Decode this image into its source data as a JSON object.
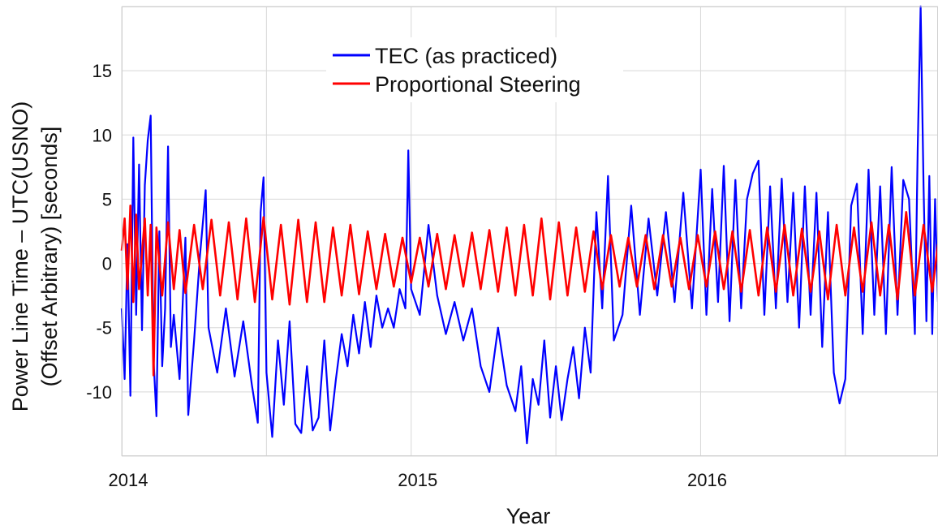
{
  "chart_data": {
    "type": "line",
    "title": "",
    "xlabel": "Year",
    "ylabel": [
      "Power Line Time – UTC(USNO)",
      "(Offset Arbitrary)  [seconds]"
    ],
    "xlim": [
      2014.0,
      2016.82
    ],
    "ylim": [
      -15,
      20
    ],
    "x_ticks": [
      2014,
      2015,
      2016
    ],
    "x_tick_labels": [
      "2014",
      "2015",
      "2016"
    ],
    "y_ticks": [
      -10,
      -5,
      0,
      5,
      10,
      15
    ],
    "y_tick_labels": [
      "-10",
      "-5",
      "0",
      "5",
      "10",
      "15"
    ],
    "grid": true,
    "legend_position": "top-center",
    "series": [
      {
        "name": "TEC (as practiced)",
        "color": "#0000ff",
        "points": [
          [
            2014.0,
            -3.5
          ],
          [
            2014.01,
            -9.0
          ],
          [
            2014.02,
            1.5
          ],
          [
            2014.03,
            -10.3
          ],
          [
            2014.04,
            9.8
          ],
          [
            2014.05,
            -4.0
          ],
          [
            2014.06,
            7.7
          ],
          [
            2014.07,
            -5.2
          ],
          [
            2014.08,
            6.1
          ],
          [
            2014.09,
            9.6
          ],
          [
            2014.1,
            11.5
          ],
          [
            2014.11,
            -7.5
          ],
          [
            2014.12,
            -11.9
          ],
          [
            2014.13,
            2.5
          ],
          [
            2014.14,
            -8.0
          ],
          [
            2014.15,
            -3.5
          ],
          [
            2014.16,
            9.1
          ],
          [
            2014.17,
            -6.5
          ],
          [
            2014.18,
            -4.0
          ],
          [
            2014.2,
            -9.0
          ],
          [
            2014.22,
            2.0
          ],
          [
            2014.23,
            -11.8
          ],
          [
            2014.25,
            -6.0
          ],
          [
            2014.27,
            0.5
          ],
          [
            2014.29,
            5.7
          ],
          [
            2014.3,
            -5.0
          ],
          [
            2014.33,
            -8.5
          ],
          [
            2014.36,
            -3.5
          ],
          [
            2014.39,
            -8.8
          ],
          [
            2014.42,
            -4.5
          ],
          [
            2014.45,
            -9.5
          ],
          [
            2014.47,
            -12.4
          ],
          [
            2014.48,
            4.0
          ],
          [
            2014.49,
            6.7
          ],
          [
            2014.5,
            -8.5
          ],
          [
            2014.52,
            -13.5
          ],
          [
            2014.54,
            -6.0
          ],
          [
            2014.56,
            -11.0
          ],
          [
            2014.58,
            -4.5
          ],
          [
            2014.6,
            -12.5
          ],
          [
            2014.62,
            -13.2
          ],
          [
            2014.64,
            -8.0
          ],
          [
            2014.66,
            -13.0
          ],
          [
            2014.68,
            -12.0
          ],
          [
            2014.7,
            -6.0
          ],
          [
            2014.72,
            -13.0
          ],
          [
            2014.74,
            -9.0
          ],
          [
            2014.76,
            -5.5
          ],
          [
            2014.78,
            -8.0
          ],
          [
            2014.8,
            -4.0
          ],
          [
            2014.82,
            -7.0
          ],
          [
            2014.84,
            -3.0
          ],
          [
            2014.86,
            -6.5
          ],
          [
            2014.88,
            -2.5
          ],
          [
            2014.9,
            -5.0
          ],
          [
            2014.92,
            -3.5
          ],
          [
            2014.94,
            -5.0
          ],
          [
            2014.96,
            -2.0
          ],
          [
            2014.98,
            -3.5
          ],
          [
            2014.99,
            8.8
          ],
          [
            2015.0,
            -2.0
          ],
          [
            2015.03,
            -4.0
          ],
          [
            2015.06,
            3.0
          ],
          [
            2015.09,
            -2.5
          ],
          [
            2015.12,
            -5.5
          ],
          [
            2015.15,
            -3.0
          ],
          [
            2015.18,
            -6.0
          ],
          [
            2015.21,
            -3.5
          ],
          [
            2015.24,
            -8.0
          ],
          [
            2015.27,
            -10.0
          ],
          [
            2015.3,
            -5.0
          ],
          [
            2015.33,
            -9.5
          ],
          [
            2015.36,
            -11.5
          ],
          [
            2015.38,
            -8.0
          ],
          [
            2015.4,
            -14.0
          ],
          [
            2015.42,
            -9.0
          ],
          [
            2015.44,
            -11.0
          ],
          [
            2015.46,
            -6.0
          ],
          [
            2015.48,
            -12.0
          ],
          [
            2015.5,
            -8.0
          ],
          [
            2015.52,
            -12.2
          ],
          [
            2015.54,
            -9.0
          ],
          [
            2015.56,
            -6.5
          ],
          [
            2015.58,
            -10.5
          ],
          [
            2015.6,
            -5.0
          ],
          [
            2015.62,
            -8.5
          ],
          [
            2015.64,
            4.0
          ],
          [
            2015.66,
            -3.5
          ],
          [
            2015.68,
            6.8
          ],
          [
            2015.7,
            -6.0
          ],
          [
            2015.73,
            -4.0
          ],
          [
            2015.76,
            4.5
          ],
          [
            2015.79,
            -4.0
          ],
          [
            2015.82,
            3.5
          ],
          [
            2015.85,
            -2.5
          ],
          [
            2015.88,
            4.0
          ],
          [
            2015.91,
            -3.0
          ],
          [
            2015.94,
            5.5
          ],
          [
            2015.97,
            -3.5
          ],
          [
            2016.0,
            7.3
          ],
          [
            2016.02,
            -4.0
          ],
          [
            2016.04,
            5.8
          ],
          [
            2016.06,
            -3.0
          ],
          [
            2016.08,
            7.6
          ],
          [
            2016.1,
            -4.5
          ],
          [
            2016.12,
            6.5
          ],
          [
            2016.14,
            -3.5
          ],
          [
            2016.16,
            5.0
          ],
          [
            2016.18,
            7.0
          ],
          [
            2016.2,
            8.0
          ],
          [
            2016.22,
            -4.0
          ],
          [
            2016.24,
            6.0
          ],
          [
            2016.26,
            -3.5
          ],
          [
            2016.28,
            6.6
          ],
          [
            2016.3,
            -3.0
          ],
          [
            2016.32,
            5.5
          ],
          [
            2016.34,
            -5.0
          ],
          [
            2016.36,
            6.0
          ],
          [
            2016.38,
            -4.0
          ],
          [
            2016.4,
            5.5
          ],
          [
            2016.42,
            -6.5
          ],
          [
            2016.44,
            4.0
          ],
          [
            2016.46,
            -8.5
          ],
          [
            2016.48,
            -10.9
          ],
          [
            2016.5,
            -9.0
          ],
          [
            2016.52,
            4.5
          ],
          [
            2016.54,
            6.2
          ],
          [
            2016.56,
            -5.5
          ],
          [
            2016.58,
            7.3
          ],
          [
            2016.6,
            -4.0
          ],
          [
            2016.62,
            6.0
          ],
          [
            2016.64,
            -5.5
          ],
          [
            2016.66,
            7.5
          ],
          [
            2016.68,
            -4.0
          ],
          [
            2016.7,
            6.5
          ],
          [
            2016.72,
            5.0
          ],
          [
            2016.74,
            -5.5
          ],
          [
            2016.75,
            9.0
          ],
          [
            2016.76,
            20.0
          ],
          [
            2016.77,
            6.0
          ],
          [
            2016.78,
            -4.5
          ],
          [
            2016.79,
            6.8
          ],
          [
            2016.8,
            -5.5
          ],
          [
            2016.81,
            5.0
          ],
          [
            2016.82,
            -3.0
          ]
        ]
      },
      {
        "name": "Proportional Steering",
        "color": "#ff0000",
        "points": [
          [
            2014.0,
            1.0
          ],
          [
            2014.01,
            3.5
          ],
          [
            2014.02,
            -2.0
          ],
          [
            2014.03,
            4.5
          ],
          [
            2014.04,
            -3.0
          ],
          [
            2014.05,
            3.8
          ],
          [
            2014.06,
            -2.0
          ],
          [
            2014.08,
            3.5
          ],
          [
            2014.09,
            -2.5
          ],
          [
            2014.1,
            3.0
          ],
          [
            2014.11,
            -8.7
          ],
          [
            2014.12,
            2.8
          ],
          [
            2014.14,
            -2.5
          ],
          [
            2014.16,
            3.2
          ],
          [
            2014.18,
            -2.0
          ],
          [
            2014.2,
            2.6
          ],
          [
            2014.22,
            -2.3
          ],
          [
            2014.25,
            3.0
          ],
          [
            2014.28,
            -2.0
          ],
          [
            2014.31,
            3.4
          ],
          [
            2014.34,
            -2.5
          ],
          [
            2014.37,
            3.2
          ],
          [
            2014.4,
            -2.8
          ],
          [
            2014.43,
            3.5
          ],
          [
            2014.46,
            -3.0
          ],
          [
            2014.49,
            3.6
          ],
          [
            2014.52,
            -2.8
          ],
          [
            2014.55,
            3.0
          ],
          [
            2014.58,
            -3.2
          ],
          [
            2014.61,
            3.4
          ],
          [
            2014.64,
            -3.0
          ],
          [
            2014.67,
            3.2
          ],
          [
            2014.7,
            -3.0
          ],
          [
            2014.73,
            2.8
          ],
          [
            2014.76,
            -2.5
          ],
          [
            2014.79,
            3.0
          ],
          [
            2014.82,
            -2.4
          ],
          [
            2014.85,
            2.5
          ],
          [
            2014.88,
            -2.0
          ],
          [
            2014.91,
            2.3
          ],
          [
            2014.94,
            -1.8
          ],
          [
            2014.97,
            2.0
          ],
          [
            2015.0,
            -1.5
          ],
          [
            2015.03,
            2.0
          ],
          [
            2015.06,
            -1.8
          ],
          [
            2015.09,
            2.3
          ],
          [
            2015.12,
            -2.0
          ],
          [
            2015.15,
            2.2
          ],
          [
            2015.18,
            -1.8
          ],
          [
            2015.21,
            2.4
          ],
          [
            2015.24,
            -2.0
          ],
          [
            2015.27,
            2.6
          ],
          [
            2015.3,
            -2.2
          ],
          [
            2015.33,
            2.8
          ],
          [
            2015.36,
            -2.5
          ],
          [
            2015.39,
            3.0
          ],
          [
            2015.42,
            -2.5
          ],
          [
            2015.45,
            3.5
          ],
          [
            2015.48,
            -2.8
          ],
          [
            2015.51,
            3.2
          ],
          [
            2015.54,
            -2.5
          ],
          [
            2015.57,
            2.8
          ],
          [
            2015.6,
            -2.2
          ],
          [
            2015.63,
            2.5
          ],
          [
            2015.66,
            -2.0
          ],
          [
            2015.69,
            2.2
          ],
          [
            2015.72,
            -1.8
          ],
          [
            2015.75,
            2.0
          ],
          [
            2015.78,
            -1.8
          ],
          [
            2015.81,
            2.2
          ],
          [
            2015.84,
            -2.0
          ],
          [
            2015.87,
            2.2
          ],
          [
            2015.9,
            -1.8
          ],
          [
            2015.93,
            2.0
          ],
          [
            2015.96,
            -2.0
          ],
          [
            2015.99,
            2.2
          ],
          [
            2016.02,
            -1.8
          ],
          [
            2016.05,
            2.5
          ],
          [
            2016.08,
            -2.0
          ],
          [
            2016.11,
            2.5
          ],
          [
            2016.14,
            -2.2
          ],
          [
            2016.17,
            2.6
          ],
          [
            2016.2,
            -2.5
          ],
          [
            2016.23,
            2.8
          ],
          [
            2016.26,
            -2.2
          ],
          [
            2016.29,
            3.0
          ],
          [
            2016.32,
            -2.5
          ],
          [
            2016.35,
            2.7
          ],
          [
            2016.38,
            -2.2
          ],
          [
            2016.41,
            2.5
          ],
          [
            2016.44,
            -2.8
          ],
          [
            2016.47,
            3.0
          ],
          [
            2016.5,
            -2.5
          ],
          [
            2016.53,
            2.8
          ],
          [
            2016.56,
            -2.2
          ],
          [
            2016.59,
            3.2
          ],
          [
            2016.62,
            -2.5
          ],
          [
            2016.65,
            3.0
          ],
          [
            2016.68,
            -2.8
          ],
          [
            2016.71,
            4.0
          ],
          [
            2016.74,
            -2.5
          ],
          [
            2016.77,
            3.0
          ],
          [
            2016.8,
            -2.2
          ],
          [
            2016.82,
            1.5
          ]
        ]
      }
    ]
  }
}
